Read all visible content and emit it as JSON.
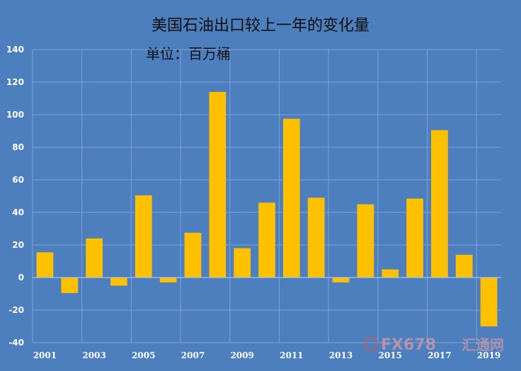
{
  "title": "美国石油出口较上一年的变化量",
  "subtitle": "单位：百万桶",
  "watermark": {
    "brand": "FX678",
    "cn": "汇通网"
  },
  "colors": {
    "background": "#4d7fbe",
    "bar": "#ffc000",
    "grid": "#7da2d3",
    "axis_text": "#ffffff"
  },
  "chart_data": {
    "type": "bar",
    "categories": [
      "2001",
      "2002",
      "2003",
      "2004",
      "2005",
      "2006",
      "2007",
      "2008",
      "2009",
      "2010",
      "2011",
      "2012",
      "2013",
      "2014",
      "2015",
      "2016",
      "2017",
      "2018",
      "2019"
    ],
    "values": [
      15.5,
      -9.5,
      24,
      -5,
      50.5,
      -3,
      27.5,
      114,
      18,
      46,
      97.5,
      49,
      -3,
      45,
      5,
      48.5,
      90.5,
      14,
      -30
    ],
    "tick_labels_x": [
      "2001",
      "2003",
      "2005",
      "2007",
      "2009",
      "2011",
      "2013",
      "2015",
      "2017",
      "2019"
    ],
    "y_ticks": [
      140,
      120,
      100,
      80,
      60,
      40,
      20,
      0,
      -20,
      -40
    ],
    "ylim": [
      -40,
      140
    ],
    "grid": true
  }
}
